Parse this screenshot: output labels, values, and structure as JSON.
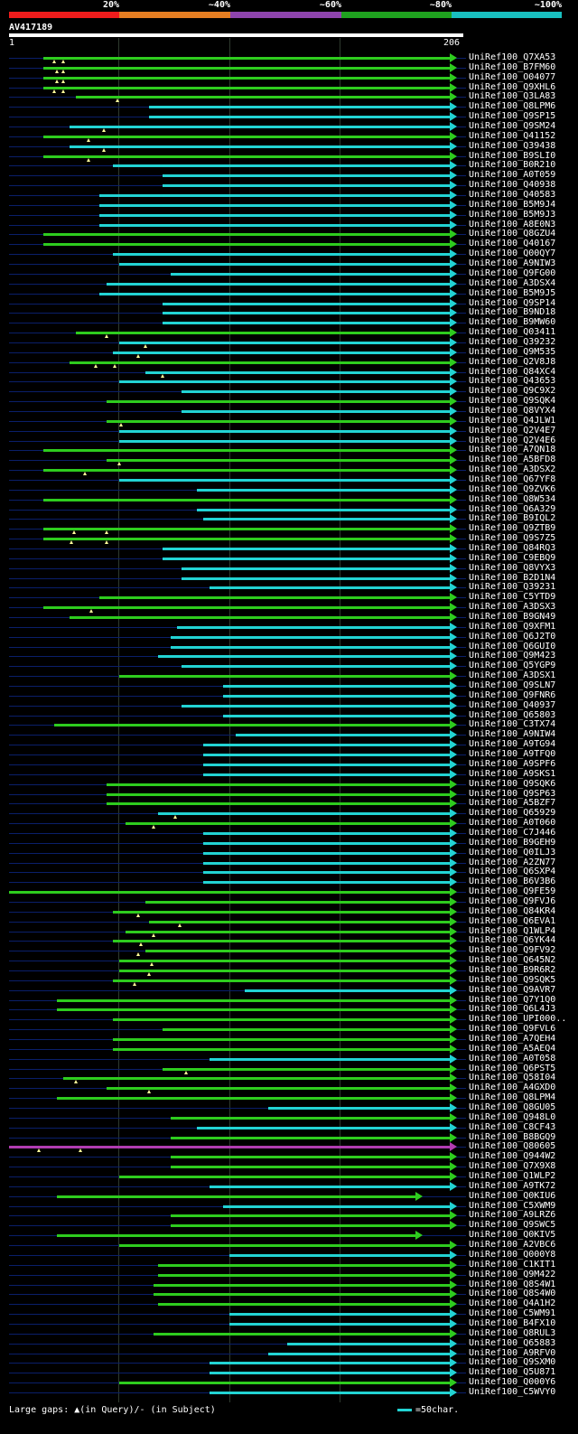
{
  "header": {
    "percent_labels": [
      "20%",
      "~40%",
      "~60%",
      "~80%",
      "~100%"
    ],
    "percent_colors": [
      "#ef1c1c",
      "#e67e22",
      "#8e44ad",
      "#1fa21f",
      "#19c0c0"
    ],
    "query_name": "AV417189",
    "query_start": "1",
    "query_end": "206"
  },
  "colors": {
    "green": "#2ecc1e",
    "cyan": "#22d3d3",
    "purple": "#b23cb2",
    "gap": "#ffff99",
    "background": "#000000"
  },
  "legend": {
    "text": "Large gaps: ▲(in Query)/- (in Subject)",
    "scale_text": "=50char."
  },
  "hits": [
    {
      "label": "UniRef100_Q7XA53",
      "color": "green",
      "start": 17,
      "end": 206,
      "gaps": [
        22,
        26
      ]
    },
    {
      "label": "UniRef100_B7FM60",
      "color": "green",
      "start": 17,
      "end": 206,
      "gaps": [
        23,
        26
      ]
    },
    {
      "label": "UniRef100_O04077",
      "color": "green",
      "start": 17,
      "end": 206,
      "gaps": [
        23,
        26
      ]
    },
    {
      "label": "UniRef100_Q9XHL6",
      "color": "green",
      "start": 17,
      "end": 206,
      "gaps": [
        22,
        26
      ]
    },
    {
      "label": "UniRef100_Q3LA83",
      "color": "green",
      "start": 32,
      "end": 206,
      "gaps": [
        51
      ]
    },
    {
      "label": "UniRef100_Q8LPM6",
      "color": "cyan",
      "start": 66,
      "end": 206
    },
    {
      "label": "UniRef100_Q9SP15",
      "color": "cyan",
      "start": 66,
      "end": 206
    },
    {
      "label": "UniRef100_Q9SM24",
      "color": "cyan",
      "start": 29,
      "end": 206,
      "gaps": [
        45
      ]
    },
    {
      "label": "UniRef100_Q41152",
      "color": "green",
      "start": 17,
      "end": 206,
      "gaps": [
        38
      ]
    },
    {
      "label": "UniRef100_Q39438",
      "color": "cyan",
      "start": 29,
      "end": 206,
      "gaps": [
        45
      ]
    },
    {
      "label": "UniRef100_B9SLI0",
      "color": "green",
      "start": 17,
      "end": 206,
      "gaps": [
        38
      ]
    },
    {
      "label": "UniRef100_B0R210",
      "color": "cyan",
      "start": 49,
      "end": 206
    },
    {
      "label": "UniRef100_A0T059",
      "color": "cyan",
      "start": 72,
      "end": 206
    },
    {
      "label": "UniRef100_Q40938",
      "color": "cyan",
      "start": 72,
      "end": 206
    },
    {
      "label": "UniRef100_Q40583",
      "color": "cyan",
      "start": 43,
      "end": 206
    },
    {
      "label": "UniRef100_B5M9J4",
      "color": "cyan",
      "start": 43,
      "end": 206
    },
    {
      "label": "UniRef100_B5M9J3",
      "color": "cyan",
      "start": 43,
      "end": 206
    },
    {
      "label": "UniRef100_A8E0N3",
      "color": "cyan",
      "start": 43,
      "end": 206
    },
    {
      "label": "UniRef100_Q8GZU4",
      "color": "green",
      "start": 17,
      "end": 206
    },
    {
      "label": "UniRef100_Q40167",
      "color": "green",
      "start": 17,
      "end": 206
    },
    {
      "label": "UniRef100_Q00QY7",
      "color": "cyan",
      "start": 49,
      "end": 206
    },
    {
      "label": "UniRef100_A9NIW3",
      "color": "cyan",
      "start": 52,
      "end": 206
    },
    {
      "label": "UniRef100_Q9FG00",
      "color": "cyan",
      "start": 76,
      "end": 206
    },
    {
      "label": "UniRef100_A3DSX4",
      "color": "cyan",
      "start": 46,
      "end": 206
    },
    {
      "label": "UniRef100_B5M9J5",
      "color": "cyan",
      "start": 43,
      "end": 206
    },
    {
      "label": "UniRef100_Q9SP14",
      "color": "cyan",
      "start": 72,
      "end": 206
    },
    {
      "label": "UniRef100_B9ND18",
      "color": "cyan",
      "start": 72,
      "end": 206
    },
    {
      "label": "UniRef100_B9MW60",
      "color": "cyan",
      "start": 72,
      "end": 206
    },
    {
      "label": "UniRef100_Q03411",
      "color": "green",
      "start": 32,
      "end": 206,
      "gaps": [
        46
      ]
    },
    {
      "label": "UniRef100_Q39232",
      "color": "cyan",
      "start": 52,
      "end": 206,
      "gaps": [
        64
      ]
    },
    {
      "label": "UniRef100_Q9M535",
      "color": "cyan",
      "start": 49,
      "end": 206,
      "gaps": [
        61
      ]
    },
    {
      "label": "UniRef100_Q2V8J8",
      "color": "green",
      "start": 29,
      "end": 206,
      "gaps": [
        41,
        50
      ]
    },
    {
      "label": "UniRef100_Q84XC4",
      "color": "cyan",
      "start": 64,
      "end": 206,
      "gaps": [
        72
      ]
    },
    {
      "label": "UniRef100_Q43653",
      "color": "cyan",
      "start": 52,
      "end": 206
    },
    {
      "label": "UniRef100_Q9C9X2",
      "color": "cyan",
      "start": 81,
      "end": 206
    },
    {
      "label": "UniRef100_Q9SQK4",
      "color": "green",
      "start": 46,
      "end": 206
    },
    {
      "label": "UniRef100_Q8VYX4",
      "color": "cyan",
      "start": 81,
      "end": 206
    },
    {
      "label": "UniRef100_Q4JLW1",
      "color": "green",
      "start": 46,
      "end": 206,
      "gaps": [
        53
      ]
    },
    {
      "label": "UniRef100_Q2V4E7",
      "color": "cyan",
      "start": 52,
      "end": 206
    },
    {
      "label": "UniRef100_Q2V4E6",
      "color": "cyan",
      "start": 52,
      "end": 206
    },
    {
      "label": "UniRef100_A7QN18",
      "color": "green",
      "start": 17,
      "end": 206
    },
    {
      "label": "UniRef100_A5BFD8",
      "color": "green",
      "start": 46,
      "end": 206,
      "gaps": [
        52
      ]
    },
    {
      "label": "UniRef100_A3DSX2",
      "color": "green",
      "start": 17,
      "end": 206,
      "gaps": [
        36
      ]
    },
    {
      "label": "UniRef100_Q67YF8",
      "color": "cyan",
      "start": 52,
      "end": 206
    },
    {
      "label": "UniRef100_Q9ZVK6",
      "color": "cyan",
      "start": 88,
      "end": 206
    },
    {
      "label": "UniRef100_Q8W534",
      "color": "green",
      "start": 17,
      "end": 206
    },
    {
      "label": "UniRef100_Q6A329",
      "color": "cyan",
      "start": 88,
      "end": 206
    },
    {
      "label": "UniRef100_B9IQL2",
      "color": "cyan",
      "start": 91,
      "end": 206
    },
    {
      "label": "UniRef100_Q9ZTB9",
      "color": "green",
      "start": 17,
      "end": 206,
      "gaps": [
        31,
        46
      ]
    },
    {
      "label": "UniRef100_Q9S7Z5",
      "color": "green",
      "start": 17,
      "end": 206,
      "gaps": [
        30,
        46
      ]
    },
    {
      "label": "UniRef100_Q84RQ3",
      "color": "cyan",
      "start": 72,
      "end": 206
    },
    {
      "label": "UniRef100_C9EBQ9",
      "color": "cyan",
      "start": 72,
      "end": 206
    },
    {
      "label": "UniRef100_Q8VYX3",
      "color": "cyan",
      "start": 81,
      "end": 206
    },
    {
      "label": "UniRef100_B2D1N4",
      "color": "cyan",
      "start": 81,
      "end": 206
    },
    {
      "label": "UniRef100_Q39231",
      "color": "cyan",
      "start": 94,
      "end": 206
    },
    {
      "label": "UniRef100_C5YTD9",
      "color": "green",
      "start": 43,
      "end": 206
    },
    {
      "label": "UniRef100_A3DSX3",
      "color": "green",
      "start": 17,
      "end": 206,
      "gaps": [
        39
      ]
    },
    {
      "label": "UniRef100_B9GN49",
      "color": "green",
      "start": 29,
      "end": 206
    },
    {
      "label": "UniRef100_Q9XFM1",
      "color": "cyan",
      "start": 79,
      "end": 206
    },
    {
      "label": "UniRef100_Q6J2T0",
      "color": "cyan",
      "start": 76,
      "end": 206
    },
    {
      "label": "UniRef100_Q6GUI0",
      "color": "cyan",
      "start": 76,
      "end": 206
    },
    {
      "label": "UniRef100_Q9M423",
      "color": "cyan",
      "start": 70,
      "end": 206
    },
    {
      "label": "UniRef100_Q5YGP9",
      "color": "cyan",
      "start": 81,
      "end": 206
    },
    {
      "label": "UniRef100_A3DSX1",
      "color": "green",
      "start": 52,
      "end": 206
    },
    {
      "label": "UniRef100_Q9SLN7",
      "color": "cyan",
      "start": 100,
      "end": 206
    },
    {
      "label": "UniRef100_Q9FNR6",
      "color": "cyan",
      "start": 100,
      "end": 206
    },
    {
      "label": "UniRef100_Q40937",
      "color": "cyan",
      "start": 81,
      "end": 206
    },
    {
      "label": "UniRef100_Q65803",
      "color": "cyan",
      "start": 100,
      "end": 206
    },
    {
      "label": "UniRef100_C3TX74",
      "color": "green",
      "start": 22,
      "end": 206
    },
    {
      "label": "UniRef100_A9NIW4",
      "color": "cyan",
      "start": 106,
      "end": 206
    },
    {
      "label": "UniRef100_A9TG94",
      "color": "cyan",
      "start": 91,
      "end": 206
    },
    {
      "label": "UniRef100_A9TFQ0",
      "color": "cyan",
      "start": 91,
      "end": 206
    },
    {
      "label": "UniRef100_A9SPF6",
      "color": "cyan",
      "start": 91,
      "end": 206
    },
    {
      "label": "UniRef100_A9SKS1",
      "color": "cyan",
      "start": 91,
      "end": 206
    },
    {
      "label": "UniRef100_Q9SQK6",
      "color": "green",
      "start": 46,
      "end": 206
    },
    {
      "label": "UniRef100_Q9SP63",
      "color": "green",
      "start": 46,
      "end": 206
    },
    {
      "label": "UniRef100_A5BZF7",
      "color": "green",
      "start": 46,
      "end": 206
    },
    {
      "label": "UniRef100_Q65929",
      "color": "cyan",
      "start": 70,
      "end": 206,
      "gaps": [
        78
      ]
    },
    {
      "label": "UniRef100_A0T060",
      "color": "green",
      "start": 55,
      "end": 206,
      "gaps": [
        68
      ]
    },
    {
      "label": "UniRef100_C7J446",
      "color": "cyan",
      "start": 91,
      "end": 206
    },
    {
      "label": "UniRef100_B9GEH9",
      "color": "cyan",
      "start": 91,
      "end": 206
    },
    {
      "label": "UniRef100_Q0ILJ3",
      "color": "cyan",
      "start": 91,
      "end": 206
    },
    {
      "label": "UniRef100_A2ZN77",
      "color": "cyan",
      "start": 91,
      "end": 206
    },
    {
      "label": "UniRef100_Q6SXP4",
      "color": "cyan",
      "start": 91,
      "end": 206
    },
    {
      "label": "UniRef100_B6V3B6",
      "color": "cyan",
      "start": 91,
      "end": 206
    },
    {
      "label": "UniRef100_Q9FE59",
      "color": "green",
      "start": 1,
      "end": 206
    },
    {
      "label": "UniRef100_Q9FVJ6",
      "color": "green",
      "start": 64,
      "end": 206
    },
    {
      "label": "UniRef100_Q84KR4",
      "color": "green",
      "start": 49,
      "end": 206,
      "gaps": [
        61
      ]
    },
    {
      "label": "UniRef100_Q6EVA1",
      "color": "green",
      "start": 66,
      "end": 206,
      "gaps": [
        80
      ]
    },
    {
      "label": "UniRef100_Q1WLP4",
      "color": "green",
      "start": 55,
      "end": 206,
      "gaps": [
        68
      ]
    },
    {
      "label": "UniRef100_Q6YK44",
      "color": "green",
      "start": 49,
      "end": 206,
      "gaps": [
        62
      ]
    },
    {
      "label": "UniRef100_Q9FV92",
      "color": "green",
      "start": 64,
      "end": 206,
      "gaps": [
        61
      ]
    },
    {
      "label": "UniRef100_Q645N2",
      "color": "green",
      "start": 52,
      "end": 206,
      "gaps": [
        67
      ]
    },
    {
      "label": "UniRef100_B9R6R2",
      "color": "green",
      "start": 52,
      "end": 206,
      "gaps": [
        66
      ]
    },
    {
      "label": "UniRef100_Q9SQK5",
      "color": "green",
      "start": 49,
      "end": 206,
      "gaps": [
        59
      ]
    },
    {
      "label": "UniRef100_Q9AVR7",
      "color": "cyan",
      "start": 110,
      "end": 206
    },
    {
      "label": "UniRef100_Q7Y1Q0",
      "color": "green",
      "start": 23,
      "end": 206
    },
    {
      "label": "UniRef100_Q6L4J3",
      "color": "green",
      "start": 23,
      "end": 206
    },
    {
      "label": "UniRef100_UPI000..",
      "color": "green",
      "start": 49,
      "end": 206
    },
    {
      "label": "UniRef100_Q9FVL6",
      "color": "green",
      "start": 72,
      "end": 206
    },
    {
      "label": "UniRef100_A7QEH4",
      "color": "green",
      "start": 49,
      "end": 206
    },
    {
      "label": "UniRef100_A5AEQ4",
      "color": "green",
      "start": 49,
      "end": 206
    },
    {
      "label": "UniRef100_A0T058",
      "color": "cyan",
      "start": 94,
      "end": 206
    },
    {
      "label": "UniRef100_Q6PST5",
      "color": "green",
      "start": 72,
      "end": 206,
      "gaps": [
        83
      ]
    },
    {
      "label": "UniRef100_Q58I04",
      "color": "green",
      "start": 26,
      "end": 206,
      "gaps": [
        32
      ]
    },
    {
      "label": "UniRef100_A4GXD0",
      "color": "green",
      "start": 46,
      "end": 206,
      "gaps": [
        66
      ]
    },
    {
      "label": "UniRef100_Q8LPM4",
      "color": "green",
      "start": 23,
      "end": 206
    },
    {
      "label": "UniRef100_Q8GU05",
      "color": "cyan",
      "start": 121,
      "end": 206
    },
    {
      "label": "UniRef100_Q948L0",
      "color": "green",
      "start": 76,
      "end": 206
    },
    {
      "label": "UniRef100_C8CF43",
      "color": "cyan",
      "start": 88,
      "end": 206
    },
    {
      "label": "UniRef100_B8BGQ9",
      "color": "green",
      "start": 76,
      "end": 206
    },
    {
      "label": "UniRef100_Q80605",
      "color": "purple",
      "start": 1,
      "end": 206,
      "gaps": [
        15,
        34
      ]
    },
    {
      "label": "UniRef100_Q944W2",
      "color": "green",
      "start": 76,
      "end": 206
    },
    {
      "label": "UniRef100_Q7X9X8",
      "color": "green",
      "start": 76,
      "end": 206
    },
    {
      "label": "UniRef100_Q1WLP2",
      "color": "green",
      "start": 52,
      "end": 206
    },
    {
      "label": "UniRef100_A9TK72",
      "color": "cyan",
      "start": 94,
      "end": 206
    },
    {
      "label": "UniRef100_Q0KIU6",
      "color": "green",
      "start": 23,
      "end": 190
    },
    {
      "label": "UniRef100_C5XWM9",
      "color": "cyan",
      "start": 100,
      "end": 206
    },
    {
      "label": "UniRef100_A9LRZ6",
      "color": "green",
      "start": 76,
      "end": 206
    },
    {
      "label": "UniRef100_Q9SWC5",
      "color": "green",
      "start": 76,
      "end": 206
    },
    {
      "label": "UniRef100_Q0KIV5",
      "color": "green",
      "start": 23,
      "end": 190
    },
    {
      "label": "UniRef100_A2VBC6",
      "color": "green",
      "start": 52,
      "end": 206
    },
    {
      "label": "UniRef100_Q000Y8",
      "color": "cyan",
      "start": 103,
      "end": 206
    },
    {
      "label": "UniRef100_C1KIT1",
      "color": "green",
      "start": 70,
      "end": 206
    },
    {
      "label": "UniRef100_Q9M422",
      "color": "green",
      "start": 70,
      "end": 206
    },
    {
      "label": "UniRef100_Q8S4W1",
      "color": "green",
      "start": 68,
      "end": 206
    },
    {
      "label": "UniRef100_Q8S4W0",
      "color": "green",
      "start": 68,
      "end": 206
    },
    {
      "label": "UniRef100_Q4A1H2",
      "color": "green",
      "start": 70,
      "end": 206
    },
    {
      "label": "UniRef100_C5WM91",
      "color": "cyan",
      "start": 103,
      "end": 206
    },
    {
      "label": "UniRef100_B4FX10",
      "color": "cyan",
      "start": 103,
      "end": 206
    },
    {
      "label": "UniRef100_Q8RUL3",
      "color": "green",
      "start": 68,
      "end": 206
    },
    {
      "label": "UniRef100_Q65883",
      "color": "cyan",
      "start": 130,
      "end": 206
    },
    {
      "label": "UniRef100_A9RFV0",
      "color": "cyan",
      "start": 121,
      "end": 206
    },
    {
      "label": "UniRef100_Q9SXM0",
      "color": "cyan",
      "start": 94,
      "end": 206
    },
    {
      "label": "UniRef100_Q5U871",
      "color": "cyan",
      "start": 94,
      "end": 206
    },
    {
      "label": "UniRef100_Q000Y6",
      "color": "green",
      "start": 52,
      "end": 206
    },
    {
      "label": "UniRef100_C5WVY0",
      "color": "cyan",
      "start": 94,
      "end": 206
    }
  ]
}
